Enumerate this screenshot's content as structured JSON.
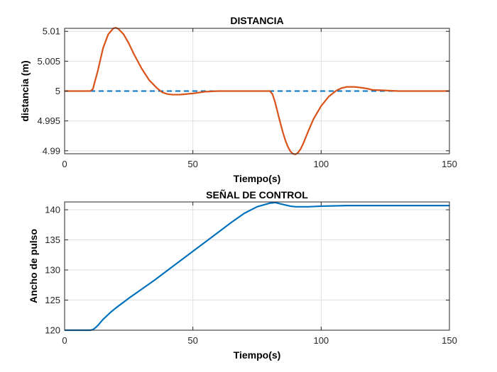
{
  "chart_data": [
    {
      "type": "line",
      "title": "DISTANCIA",
      "xlabel": "Tiempo(s)",
      "ylabel": "distancia (m)",
      "xlim": [
        0,
        150
      ],
      "ylim": [
        4.9895,
        5.0105
      ],
      "xticks": [
        "0",
        "50",
        "100",
        "150"
      ],
      "xtick_values": [
        0,
        50,
        100,
        150
      ],
      "yticks": [
        "4.99",
        "4.995",
        "5",
        "5.005",
        "5.01"
      ],
      "ytick_values": [
        4.99,
        4.995,
        5.0,
        5.005,
        5.01
      ],
      "grid": true,
      "series": [
        {
          "color": "#0072BD",
          "style": "dashed",
          "x": [
            0,
            150
          ],
          "y": [
            5.0,
            5.0
          ]
        },
        {
          "color": "#D95319",
          "style": "solid",
          "x": [
            0,
            10,
            11,
            13,
            15,
            17,
            19,
            20,
            21,
            23,
            25,
            27,
            30,
            33,
            36,
            38,
            40,
            42,
            45,
            50,
            55,
            60,
            65,
            70,
            75,
            80,
            81,
            82,
            83,
            84,
            85,
            86,
            87,
            88,
            89,
            90,
            91,
            92,
            93,
            95,
            97,
            100,
            103,
            106,
            108,
            110,
            113,
            115,
            118,
            120,
            125,
            130,
            135,
            140,
            150
          ],
          "y": [
            5.0,
            5.0,
            5.0003,
            5.0035,
            5.0072,
            5.0095,
            5.0105,
            5.0106,
            5.0104,
            5.0095,
            5.008,
            5.0062,
            5.0038,
            5.0018,
            5.0005,
            4.9998,
            4.9995,
            4.9994,
            4.9994,
            4.9996,
            4.9999,
            5.0,
            5.0,
            5.0,
            5.0,
            5.0,
            4.9995,
            4.9982,
            4.9965,
            4.9948,
            4.9932,
            4.9918,
            4.9907,
            4.9899,
            4.9895,
            4.9894,
            4.9897,
            4.9903,
            4.9912,
            4.9933,
            4.9953,
            4.9975,
            4.9991,
            5.0001,
            5.0005,
            5.0007,
            5.0007,
            5.0006,
            5.0004,
            5.0002,
            5.0001,
            5.0,
            5.0,
            5.0,
            5.0
          ]
        }
      ]
    },
    {
      "type": "line",
      "title": "SEÑAL DE CONTROL",
      "xlabel": "Tiempo(s)",
      "ylabel": "Ancho de pulso",
      "xlim": [
        0,
        150
      ],
      "ylim": [
        120,
        141.3
      ],
      "xticks": [
        "0",
        "50",
        "100",
        "150"
      ],
      "xtick_values": [
        0,
        50,
        100,
        150
      ],
      "yticks": [
        "120",
        "125",
        "130",
        "135",
        "140"
      ],
      "ytick_values": [
        120,
        125,
        130,
        135,
        140
      ],
      "grid": true,
      "series": [
        {
          "color": "#0072BD",
          "style": "solid",
          "x": [
            0,
            10,
            11,
            12,
            13,
            14,
            15,
            16,
            18,
            20,
            25,
            30,
            35,
            40,
            45,
            50,
            55,
            60,
            65,
            70,
            75,
            80,
            82,
            85,
            88,
            90,
            95,
            100,
            110,
            120,
            130,
            140,
            150
          ],
          "y": [
            120,
            120,
            120.1,
            120.4,
            120.8,
            121.3,
            121.8,
            122.2,
            123.0,
            123.7,
            125.3,
            126.8,
            128.3,
            129.9,
            131.5,
            133.1,
            134.7,
            136.3,
            137.9,
            139.4,
            140.5,
            141.1,
            141.2,
            140.9,
            140.6,
            140.5,
            140.5,
            140.6,
            140.7,
            140.7,
            140.7,
            140.7,
            140.7
          ]
        }
      ]
    }
  ]
}
